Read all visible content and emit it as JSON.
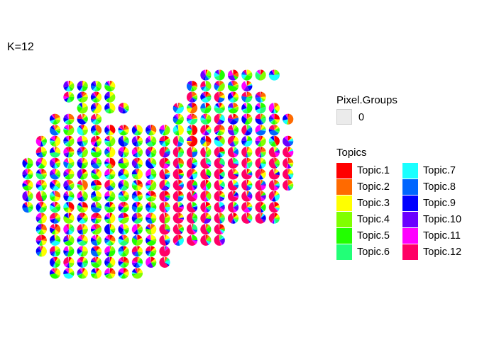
{
  "chart_data": {
    "type": "scatter",
    "title": "K=12",
    "xlabel": "",
    "ylabel": "",
    "grid": false,
    "legend_placement": "right",
    "pixel_groups_legend": {
      "title": "Pixel.Groups",
      "entries": [
        {
          "label": "0",
          "color": "#EBEBEB"
        }
      ]
    },
    "topics_legend": {
      "title": "Topics",
      "columns": 2,
      "entries": [
        {
          "label": "Topic.1",
          "color": "#FF0000"
        },
        {
          "label": "Topic.2",
          "color": "#FF6A00"
        },
        {
          "label": "Topic.3",
          "color": "#FFFF00"
        },
        {
          "label": "Topic.4",
          "color": "#80FF00"
        },
        {
          "label": "Topic.5",
          "color": "#22FF00"
        },
        {
          "label": "Topic.6",
          "color": "#22FF77"
        },
        {
          "label": "Topic.7",
          "color": "#1AFFFF"
        },
        {
          "label": "Topic.8",
          "color": "#0066FF"
        },
        {
          "label": "Topic.9",
          "color": "#0000FF"
        },
        {
          "label": "Topic.10",
          "color": "#6A00FF"
        },
        {
          "label": "Topic.11",
          "color": "#FF00FF"
        },
        {
          "label": "Topic.12",
          "color": "#FF0066"
        }
      ]
    },
    "spot_rows": [
      {
        "y": 0,
        "x_start": 13,
        "count": 6
      },
      {
        "y": 1,
        "x_start": 3,
        "count": 4
      },
      {
        "y": 1,
        "x_start": 12,
        "count": 5
      },
      {
        "y": 2,
        "x_start": 3,
        "count": 4
      },
      {
        "y": 2,
        "x_start": 12,
        "count": 6
      },
      {
        "y": 3,
        "x_start": 4,
        "count": 4
      },
      {
        "y": 3,
        "x_start": 11,
        "count": 8
      },
      {
        "y": 4,
        "x_start": 2,
        "count": 4
      },
      {
        "y": 4,
        "x_start": 11,
        "count": 9
      },
      {
        "y": 5,
        "x_start": 2,
        "count": 17
      },
      {
        "y": 6,
        "x_start": 1,
        "count": 19
      },
      {
        "y": 7,
        "x_start": 1,
        "count": 19
      },
      {
        "y": 8,
        "x_start": 0,
        "count": 20
      },
      {
        "y": 9,
        "x_start": 0,
        "count": 20
      },
      {
        "y": 10,
        "x_start": 0,
        "count": 20
      },
      {
        "y": 11,
        "x_start": 0,
        "count": 19
      },
      {
        "y": 12,
        "x_start": 0,
        "count": 19
      },
      {
        "y": 13,
        "x_start": 1,
        "count": 18
      },
      {
        "y": 14,
        "x_start": 1,
        "count": 14
      },
      {
        "y": 15,
        "x_start": 1,
        "count": 14
      },
      {
        "y": 16,
        "x_start": 1,
        "count": 10
      },
      {
        "y": 17,
        "x_start": 2,
        "count": 9
      },
      {
        "y": 18,
        "x_start": 2,
        "count": 7
      }
    ],
    "spot_value_type": "topic proportions per spot (mostly mixed; right lobe dominated by Topic.12)",
    "dominant_topic_regions": [
      {
        "region": "right lobe lower half",
        "dominant_topic": "Topic.12"
      },
      {
        "region": "left lobe",
        "dominant_topic": "mixed Topic.3/Topic.4/Topic.5/Topic.9"
      }
    ]
  }
}
